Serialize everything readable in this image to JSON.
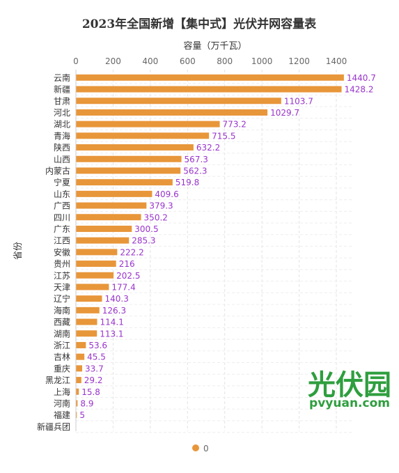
{
  "chart_data": {
    "type": "bar",
    "orientation": "horizontal",
    "title": "2023年全国新增【集中式】光伏并网容量表",
    "xlabel": "容量（万千瓦）",
    "ylabel": "省份",
    "xlim": [
      0,
      1500
    ],
    "xticks": [
      0,
      200,
      400,
      600,
      800,
      1000,
      1200,
      1400
    ],
    "grid": true,
    "legend": {
      "position": "bottom",
      "label": "0",
      "color": "#E8963A"
    },
    "categories": [
      "云南",
      "新疆",
      "甘肃",
      "河北",
      "湖北",
      "青海",
      "陕西",
      "山西",
      "内蒙古",
      "宁夏",
      "山东",
      "广西",
      "四川",
      "广东",
      "江西",
      "安徽",
      "贵州",
      "江苏",
      "天津",
      "辽宁",
      "海南",
      "西藏",
      "湖南",
      "浙江",
      "吉林",
      "重庆",
      "黑龙江",
      "上海",
      "河南",
      "福建",
      "新疆兵团"
    ],
    "values": [
      1440.7,
      1428.2,
      1103.7,
      1029.7,
      773.2,
      715.5,
      632.2,
      567.3,
      562.3,
      519.8,
      409.6,
      379.3,
      350.2,
      300.5,
      285.3,
      222.2,
      216,
      202.5,
      177.4,
      140.3,
      126.3,
      114.1,
      113.1,
      53.6,
      45.5,
      33.7,
      29.2,
      15.8,
      8.9,
      5,
      null
    ],
    "value_labels": [
      "1440.7",
      "1428.2",
      "1103.7",
      "1029.7",
      "773.2",
      "715.5",
      "632.2",
      "567.3",
      "562.3",
      "519.8",
      "409.6",
      "379.3",
      "350.2",
      "300.5",
      "285.3",
      "222.2",
      "216",
      "202.5",
      "177.4",
      "140.3",
      "126.3",
      "114.1",
      "113.1",
      "53.6",
      "45.5",
      "33.7",
      "29.2",
      "15.8",
      "8.9",
      "5",
      ""
    ],
    "bar_color": "#E8963A",
    "label_color": "#9933CC"
  },
  "watermark": {
    "cn": "光伏园",
    "en": "pvyuan.com",
    "color": "#2E9E3E"
  }
}
